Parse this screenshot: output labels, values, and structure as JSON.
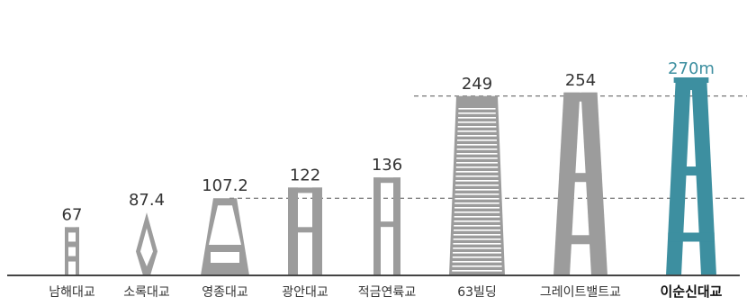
{
  "chart_data": {
    "type": "bar",
    "categories": [
      "남해대교",
      "소록대교",
      "영종대교",
      "광안대교",
      "적금연륙교",
      "63빌딩",
      "그레이트밸트교",
      "이순신대교"
    ],
    "values": [
      67,
      87.4,
      107.2,
      122,
      136,
      249,
      254,
      270
    ],
    "value_labels": [
      "67",
      "87.4",
      "107.2",
      "122",
      "136",
      "249",
      "254",
      "270m"
    ],
    "highlight_index": 7,
    "reference_lines": [
      107.2,
      249
    ],
    "colors": {
      "bar": "#9c9c9c",
      "highlight": "#3d8fa0",
      "highlight_text": "#3d8fa0",
      "baseline": "#444444",
      "dashed": "#555555",
      "text": "#333333"
    }
  }
}
